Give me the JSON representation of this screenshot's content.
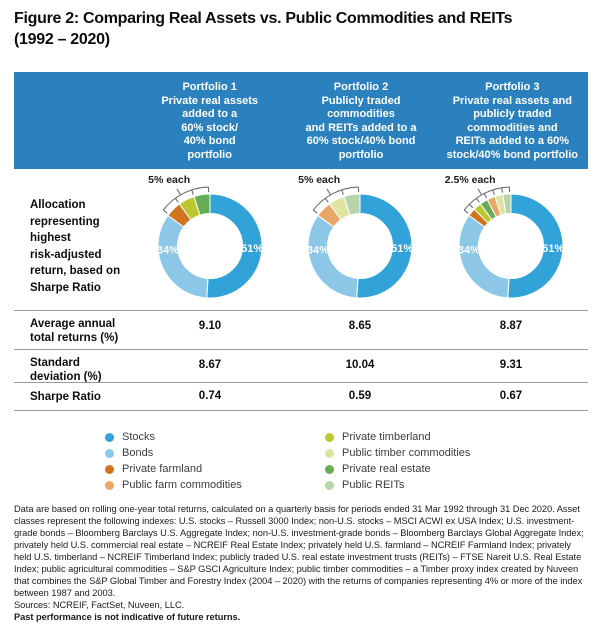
{
  "title": "Figure 2: Comparing Real Assets vs. Public Commodities and REITs\n(1992 – 2020)",
  "colors": {
    "header_bg": "#2a81be",
    "divider": "#9a9a9a",
    "stocks": "#31a3d9",
    "bonds": "#8dc7e8",
    "private_farmland": "#d2741e",
    "public_farm_commodities": "#e9a765",
    "private_timberland": "#bcc72f",
    "public_timber_commodities": "#dde5a1",
    "private_real_estate": "#67ad55",
    "public_reits": "#b7d3a9"
  },
  "header": {
    "columns": [
      {
        "text": "Portfolio 1\nPrivate real assets\nadded to a\n60% stock/\n40% bond\nportfolio"
      },
      {
        "text": "Portfolio 2\nPublicly traded\ncommodities\nand REITs added to a\n60% stock/40% bond\nportfolio"
      },
      {
        "text": "Portfolio 3\nPrivate real assets and\npublicly traded\ncommodities and\nREITs added to a 60%\nstock/40% bond portfolio"
      }
    ]
  },
  "allocation_label": "Allocation\nrepresenting\nhighest\nrisk-adjusted\nreturn, based on\nSharpe Ratio",
  "chart_data": [
    {
      "type": "pie",
      "title": "Portfolio 1 allocation",
      "callout": "5% each",
      "legend_position": "bottom",
      "slices": [
        {
          "label": "Stocks",
          "value": 51,
          "color": "#31a3d9",
          "pct_label": "51%",
          "label_angle": 93
        },
        {
          "label": "Bonds",
          "value": 34,
          "color": "#8dc7e8",
          "pct_label": "34%",
          "label_angle": 265
        },
        {
          "label": "Private farmland",
          "value": 5,
          "color": "#d2741e"
        },
        {
          "label": "Private timberland",
          "value": 5,
          "color": "#bcc72f"
        },
        {
          "label": "Private real estate",
          "value": 5,
          "color": "#67ad55"
        }
      ]
    },
    {
      "type": "pie",
      "title": "Portfolio 2 allocation",
      "callout": "5% each",
      "legend_position": "bottom",
      "slices": [
        {
          "label": "Stocks",
          "value": 51,
          "color": "#31a3d9",
          "pct_label": "51%",
          "label_angle": 93
        },
        {
          "label": "Bonds",
          "value": 34,
          "color": "#8dc7e8",
          "pct_label": "34%",
          "label_angle": 265
        },
        {
          "label": "Public farm commodities",
          "value": 5,
          "color": "#e9a765"
        },
        {
          "label": "Public timber commodities",
          "value": 5,
          "color": "#dde5a1"
        },
        {
          "label": "Public REITs",
          "value": 5,
          "color": "#b7d3a9"
        }
      ]
    },
    {
      "type": "pie",
      "title": "Portfolio 3 allocation",
      "callout": "2.5% each",
      "legend_position": "bottom",
      "slices": [
        {
          "label": "Stocks",
          "value": 51,
          "color": "#31a3d9",
          "pct_label": "51%",
          "label_angle": 93
        },
        {
          "label": "Bonds",
          "value": 34,
          "color": "#8dc7e8",
          "pct_label": "34%",
          "label_angle": 265
        },
        {
          "label": "Private farmland",
          "value": 2.5,
          "color": "#d2741e"
        },
        {
          "label": "Private timberland",
          "value": 2.5,
          "color": "#bcc72f"
        },
        {
          "label": "Private real estate",
          "value": 2.5,
          "color": "#67ad55"
        },
        {
          "label": "Public farm commodities",
          "value": 2.5,
          "color": "#e9a765"
        },
        {
          "label": "Public timber commodities",
          "value": 2.5,
          "color": "#dde5a1"
        },
        {
          "label": "Public REITs",
          "value": 2.5,
          "color": "#b7d3a9"
        }
      ]
    }
  ],
  "table": {
    "rows": [
      {
        "label": "Average annual\ntotal returns (%)",
        "values": [
          "9.10",
          "8.65",
          "8.87"
        ]
      },
      {
        "label": "Standard\ndeviation (%)",
        "values": [
          "8.67",
          "10.04",
          "9.31"
        ]
      },
      {
        "label": "Sharpe Ratio",
        "values": [
          "0.74",
          "0.59",
          "0.67"
        ]
      }
    ]
  },
  "legend": {
    "items": [
      {
        "label": "Stocks",
        "color": "#31a3d9"
      },
      {
        "label": "Bonds",
        "color": "#8dc7e8"
      },
      {
        "label": "Private farmland",
        "color": "#d2741e"
      },
      {
        "label": "Public farm commodities",
        "color": "#e9a765"
      },
      {
        "label": "Private timberland",
        "color": "#bcc72f"
      },
      {
        "label": "Public timber commodities",
        "color": "#dde5a1"
      },
      {
        "label": "Private real estate",
        "color": "#67ad55"
      },
      {
        "label": "Public REITs",
        "color": "#b7d3a9"
      }
    ]
  },
  "footnote": {
    "body": "Data are based on rolling one-year total returns, calculated on a quarterly basis for periods ended 31 Mar 1992 through 31 Dec 2020. Asset classes represent the following indexes: U.S. stocks – Russell 3000 Index; non-U.S. stocks – MSCI ACWI ex USA Index; U.S. investment-grade bonds – Bloomberg Barclays U.S. Aggregate Index; non-U.S. investment-grade bonds – Bloomberg Barclays Global Aggregate Index; privately held U.S. commercial real estate – NCREIF Real Estate Index; privately held U.S. farmland – NCREIF Farmland Index; privately held U.S. timberland – NCREIF Timberland Index; publicly traded U.S. real estate investment trusts (REITs) – FTSE Nareit U.S. Real Estate Index; public agricultural commodities – S&P GSCI Agriculture Index; public timber commodities – a Timber proxy index created by Nuveen that combines the S&P Global Timber and Forestry Index (2004 – 2020) with the returns of companies representing 4% or more of the index between 1987 and 2003.",
    "sources": "Sources: NCREIF, FactSet, Nuveen, LLC.",
    "disclaimer": "Past performance is not indicative of future returns."
  }
}
